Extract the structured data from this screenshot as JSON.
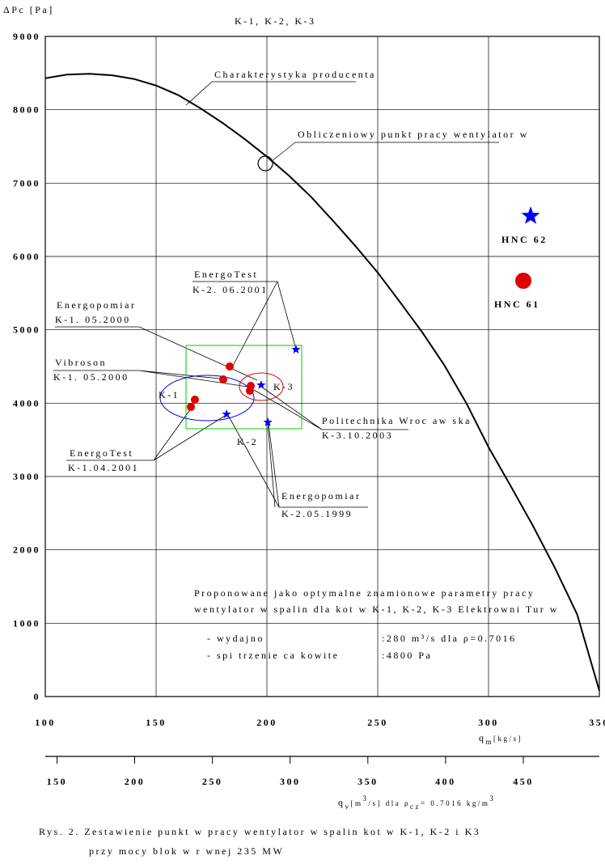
{
  "title": "K-1, K-2, K-3",
  "caption": [
    "Rys. 2. Zestawienie punkt w pracy wentylator w spalin kot  w K-1, K-2 i K3",
    "przy mocy blok w r wnej 235 MW"
  ],
  "chart_data": {
    "type": "scatter",
    "y_label": "ΔPc [Pa]",
    "x_label": [
      "q",
      "m",
      "[kg/s]"
    ],
    "x2_label": [
      "q",
      "v",
      "[m",
      "3",
      "/s] dla ρ",
      "cz",
      "= 0.7016 kg/m",
      "3"
    ],
    "xlim": [
      100,
      350
    ],
    "xticks": [
      100,
      150,
      200,
      250,
      300,
      350
    ],
    "ylim": [
      0,
      9000
    ],
    "yticks": [
      0,
      1000,
      2000,
      3000,
      4000,
      5000,
      6000,
      7000,
      8000,
      9000
    ],
    "x2lim": [
      142.5,
      498.9
    ],
    "x2ticks": [
      150,
      200,
      250,
      300,
      350,
      400,
      450
    ],
    "grid": true,
    "series": [
      {
        "type": "line",
        "color": "#000000",
        "x": [
          100,
          110,
          120,
          130,
          140,
          150,
          160,
          170,
          180,
          190,
          200,
          210,
          220,
          230,
          240,
          250,
          260,
          270,
          280,
          290,
          300,
          310,
          320,
          330,
          340,
          350
        ],
        "values": [
          8430,
          8480,
          8490,
          8470,
          8420,
          8330,
          8200,
          8020,
          7820,
          7600,
          7360,
          7100,
          6810,
          6480,
          6140,
          5780,
          5380,
          4970,
          4520,
          4000,
          3400,
          2870,
          2330,
          1750,
          1120,
          80
        ]
      },
      {
        "marker": "circle",
        "color": "#e00000",
        "x": [
          183.2,
          180.3,
          192.7,
          192.3,
          167.5,
          165.7
        ],
        "values": [
          4500,
          4323,
          4235,
          4169,
          4048,
          3948
        ]
      },
      {
        "marker": "star",
        "color": "#0000ff",
        "x": [
          213.1,
          197.4,
          181.8,
          200.4
        ],
        "values": [
          4731,
          4246,
          3849,
          3739
        ]
      },
      {
        "marker": "open-circle",
        "color": "#000000",
        "x": [
          199.3
        ],
        "values": [
          7268
        ]
      },
      {
        "name": "HNC 62",
        "marker": "star",
        "color": "#0000ff",
        "x": [
          319
        ],
        "values": [
          6551
        ]
      },
      {
        "name": "HNC 61",
        "marker": "circle",
        "color": "#e00000",
        "x": [
          315.7
        ],
        "values": [
          5669
        ]
      }
    ],
    "annotations": [
      "Charakterystyka producenta",
      "Obliczeniowy punkt pracy wentylator w",
      "EnergoTest",
      "K-2. 06.2001",
      "Energopomiar",
      "K-1. 05.2000",
      "Vibroson",
      "K-1. 05.2000",
      "EnergoTest",
      "K-1.04.2001",
      "Energopomiar",
      "K-2.05.1999",
      "Politechnika Wroc aw ska",
      "K-3.10.2003",
      "K-1",
      "K-2",
      "K-3"
    ],
    "proposal": [
      "Proponowane jako optymalne znamionowe parametry pracy",
      "wentylator w spalin dla kot  w K-1, K-2, K-3 Elektrowni Tur w",
      "- wydajno",
      ":280 m³/s  dla ρ=0.7016",
      "- spi trzenie ca kowite",
      ":4800 Pa"
    ]
  }
}
